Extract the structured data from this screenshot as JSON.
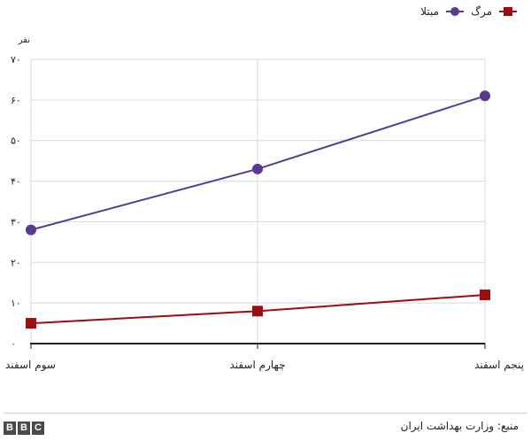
{
  "chart_data": {
    "type": "line",
    "unit_label": "نفر",
    "categories": [
      "سوم اسفند",
      "چهارم اسفند",
      "پنجم اسفند"
    ],
    "y_ticks": [
      0,
      10,
      20,
      30,
      40,
      50,
      60,
      70
    ],
    "y_tick_labels": [
      "۰",
      "۱۰",
      "۲۰",
      "۳۰",
      "۴۰",
      "۵۰",
      "۶۰",
      "۷۰"
    ],
    "ylim": [
      0,
      70
    ],
    "grid": true,
    "legend_position": "top-right",
    "series": [
      {
        "name": "مبتلا",
        "values": [
          28,
          43,
          61
        ],
        "color": "#5a3a8c",
        "marker": "circle"
      },
      {
        "name": "مرگ",
        "values": [
          5,
          8,
          12
        ],
        "color": "#9c0d10",
        "marker": "square"
      }
    ]
  },
  "footer": {
    "source": "منبع: وزارت بهداشت ایران",
    "logo_letters": [
      "B",
      "B",
      "C"
    ]
  }
}
